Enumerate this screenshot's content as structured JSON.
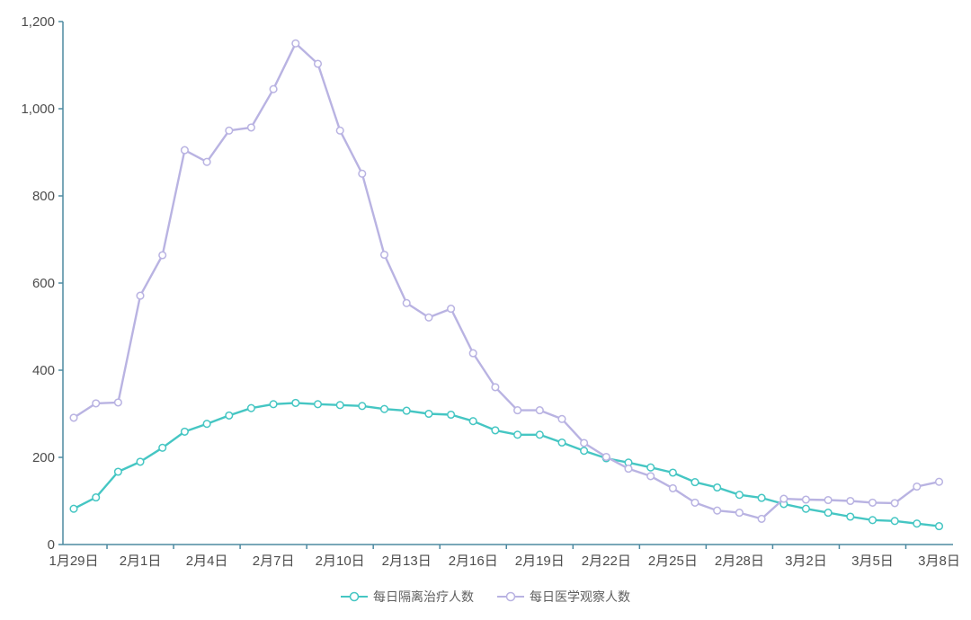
{
  "chart_data": {
    "type": "line",
    "title": "",
    "xlabel": "",
    "ylabel": "",
    "grid": false,
    "legend_position": "bottom",
    "marker": "hollow-circle",
    "background": "#ffffff",
    "axis_color": "#4d8aa1",
    "tick_label_color": "#4c4c4c",
    "legend_text_color": "#5f5f5f",
    "ylim": [
      0,
      1200
    ],
    "y_ticks": [
      {
        "value": 0,
        "label": "0"
      },
      {
        "value": 200,
        "label": "200"
      },
      {
        "value": 400,
        "label": "400"
      },
      {
        "value": 600,
        "label": "600"
      },
      {
        "value": 800,
        "label": "800"
      },
      {
        "value": 1000,
        "label": "1,000"
      },
      {
        "value": 1200,
        "label": "1,200"
      }
    ],
    "x_label_interval": 3,
    "x": [
      "1月29日",
      "1月30日",
      "1月31日",
      "2月1日",
      "2月2日",
      "2月3日",
      "2月4日",
      "2月5日",
      "2月6日",
      "2月7日",
      "2月8日",
      "2月9日",
      "2月10日",
      "2月11日",
      "2月12日",
      "2月13日",
      "2月14日",
      "2月15日",
      "2月16日",
      "2月17日",
      "2月18日",
      "2月19日",
      "2月20日",
      "2月21日",
      "2月22日",
      "2月23日",
      "2月24日",
      "2月25日",
      "2月26日",
      "2月27日",
      "2月28日",
      "2月29日",
      "3月1日",
      "3月2日",
      "3月3日",
      "3月4日",
      "3月5日",
      "3月6日",
      "3月7日",
      "3月8日"
    ],
    "series": [
      {
        "name": "每日隔离治疗人数",
        "color": "#45c6c3",
        "values": [
          82,
          108,
          167,
          190,
          222,
          259,
          277,
          296,
          313,
          322,
          325,
          322,
          320,
          318,
          311,
          307,
          300,
          298,
          283,
          262,
          252,
          252,
          234,
          215,
          198,
          188,
          177,
          165,
          143,
          131,
          114,
          107,
          93,
          82,
          73,
          64,
          56,
          54,
          48,
          42
        ]
      },
      {
        "name": "每日医学观察人数",
        "color": "#b9b3e2",
        "values": [
          291,
          324,
          326,
          571,
          664,
          905,
          878,
          950,
          957,
          1045,
          1150,
          1103,
          950,
          851,
          665,
          554,
          521,
          541,
          439,
          361,
          308,
          308,
          288,
          233,
          201,
          174,
          157,
          129,
          96,
          78,
          73,
          59,
          105,
          103,
          102,
          100,
          96,
          95,
          133,
          144
        ]
      }
    ]
  }
}
